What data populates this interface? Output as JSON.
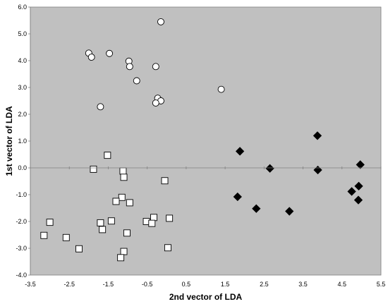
{
  "chart_data": {
    "type": "scatter",
    "title": "",
    "xlabel": "2nd vector of LDA",
    "ylabel": "1st vector of LDA",
    "xlim": [
      -3.5,
      5.5
    ],
    "ylim": [
      -4.0,
      6.0
    ],
    "xticks": [
      -3.5,
      -2.5,
      -1.5,
      -0.5,
      0.5,
      1.5,
      2.5,
      3.5,
      4.5,
      5.5
    ],
    "xtick_labels": [
      "-3.5",
      "-2.5",
      "-1.5",
      "-0.5",
      "0.5",
      "1.5",
      "2.5",
      "3.5",
      "4.5",
      "5.5"
    ],
    "yticks": [
      -4,
      -3,
      -2,
      -1,
      0,
      1,
      2,
      3,
      4,
      5,
      6
    ],
    "ytick_labels": [
      "-4.0",
      "-3.0",
      "-2.0",
      "-1.0",
      "0.0",
      "1.0",
      "2.0",
      "3.0",
      "4.0",
      "5.0",
      "6.0"
    ],
    "grid": false,
    "legend": "none",
    "plot_background": "#c0c0c0",
    "series": [
      {
        "marker": "circle",
        "fill": "#ffffff",
        "stroke": "#000000",
        "points": [
          {
            "x": -0.15,
            "y": 5.45
          },
          {
            "x": -2.0,
            "y": 4.28
          },
          {
            "x": -1.93,
            "y": 4.13
          },
          {
            "x": -1.47,
            "y": 4.27
          },
          {
            "x": -0.97,
            "y": 3.98
          },
          {
            "x": -0.95,
            "y": 3.78
          },
          {
            "x": -0.28,
            "y": 3.78
          },
          {
            "x": -0.77,
            "y": 3.25
          },
          {
            "x": 1.4,
            "y": 2.93
          },
          {
            "x": -1.7,
            "y": 2.28
          },
          {
            "x": -0.23,
            "y": 2.6
          },
          {
            "x": -0.15,
            "y": 2.5
          },
          {
            "x": -0.28,
            "y": 2.42
          }
        ]
      },
      {
        "marker": "square",
        "fill": "#ffffff",
        "stroke": "#000000",
        "points": [
          {
            "x": -1.52,
            "y": 0.47
          },
          {
            "x": -1.88,
            "y": -0.05
          },
          {
            "x": -1.12,
            "y": -0.12
          },
          {
            "x": -1.1,
            "y": -0.35
          },
          {
            "x": -0.05,
            "y": -0.48
          },
          {
            "x": -1.15,
            "y": -1.1
          },
          {
            "x": -1.3,
            "y": -1.25
          },
          {
            "x": -0.95,
            "y": -1.3
          },
          {
            "x": -3.0,
            "y": -2.03
          },
          {
            "x": -1.42,
            "y": -1.98
          },
          {
            "x": -1.7,
            "y": -2.05
          },
          {
            "x": -0.33,
            "y": -1.85
          },
          {
            "x": -0.52,
            "y": -2.0
          },
          {
            "x": -0.38,
            "y": -2.07
          },
          {
            "x": 0.07,
            "y": -1.88
          },
          {
            "x": -1.65,
            "y": -2.3
          },
          {
            "x": -1.02,
            "y": -2.43
          },
          {
            "x": -3.15,
            "y": -2.52
          },
          {
            "x": -2.58,
            "y": -2.6
          },
          {
            "x": -2.25,
            "y": -3.02
          },
          {
            "x": 0.03,
            "y": -2.98
          },
          {
            "x": -1.1,
            "y": -3.12
          },
          {
            "x": -1.18,
            "y": -3.35
          }
        ]
      },
      {
        "marker": "diamond",
        "fill": "#000000",
        "stroke": "#000000",
        "points": [
          {
            "x": 3.87,
            "y": 1.2
          },
          {
            "x": 1.88,
            "y": 0.62
          },
          {
            "x": 2.65,
            "y": -0.02
          },
          {
            "x": 3.88,
            "y": -0.08
          },
          {
            "x": 4.97,
            "y": 0.12
          },
          {
            "x": 4.93,
            "y": -0.68
          },
          {
            "x": 4.75,
            "y": -0.88
          },
          {
            "x": 1.82,
            "y": -1.08
          },
          {
            "x": 4.92,
            "y": -1.2
          },
          {
            "x": 2.3,
            "y": -1.52
          },
          {
            "x": 3.15,
            "y": -1.62
          }
        ]
      }
    ]
  }
}
